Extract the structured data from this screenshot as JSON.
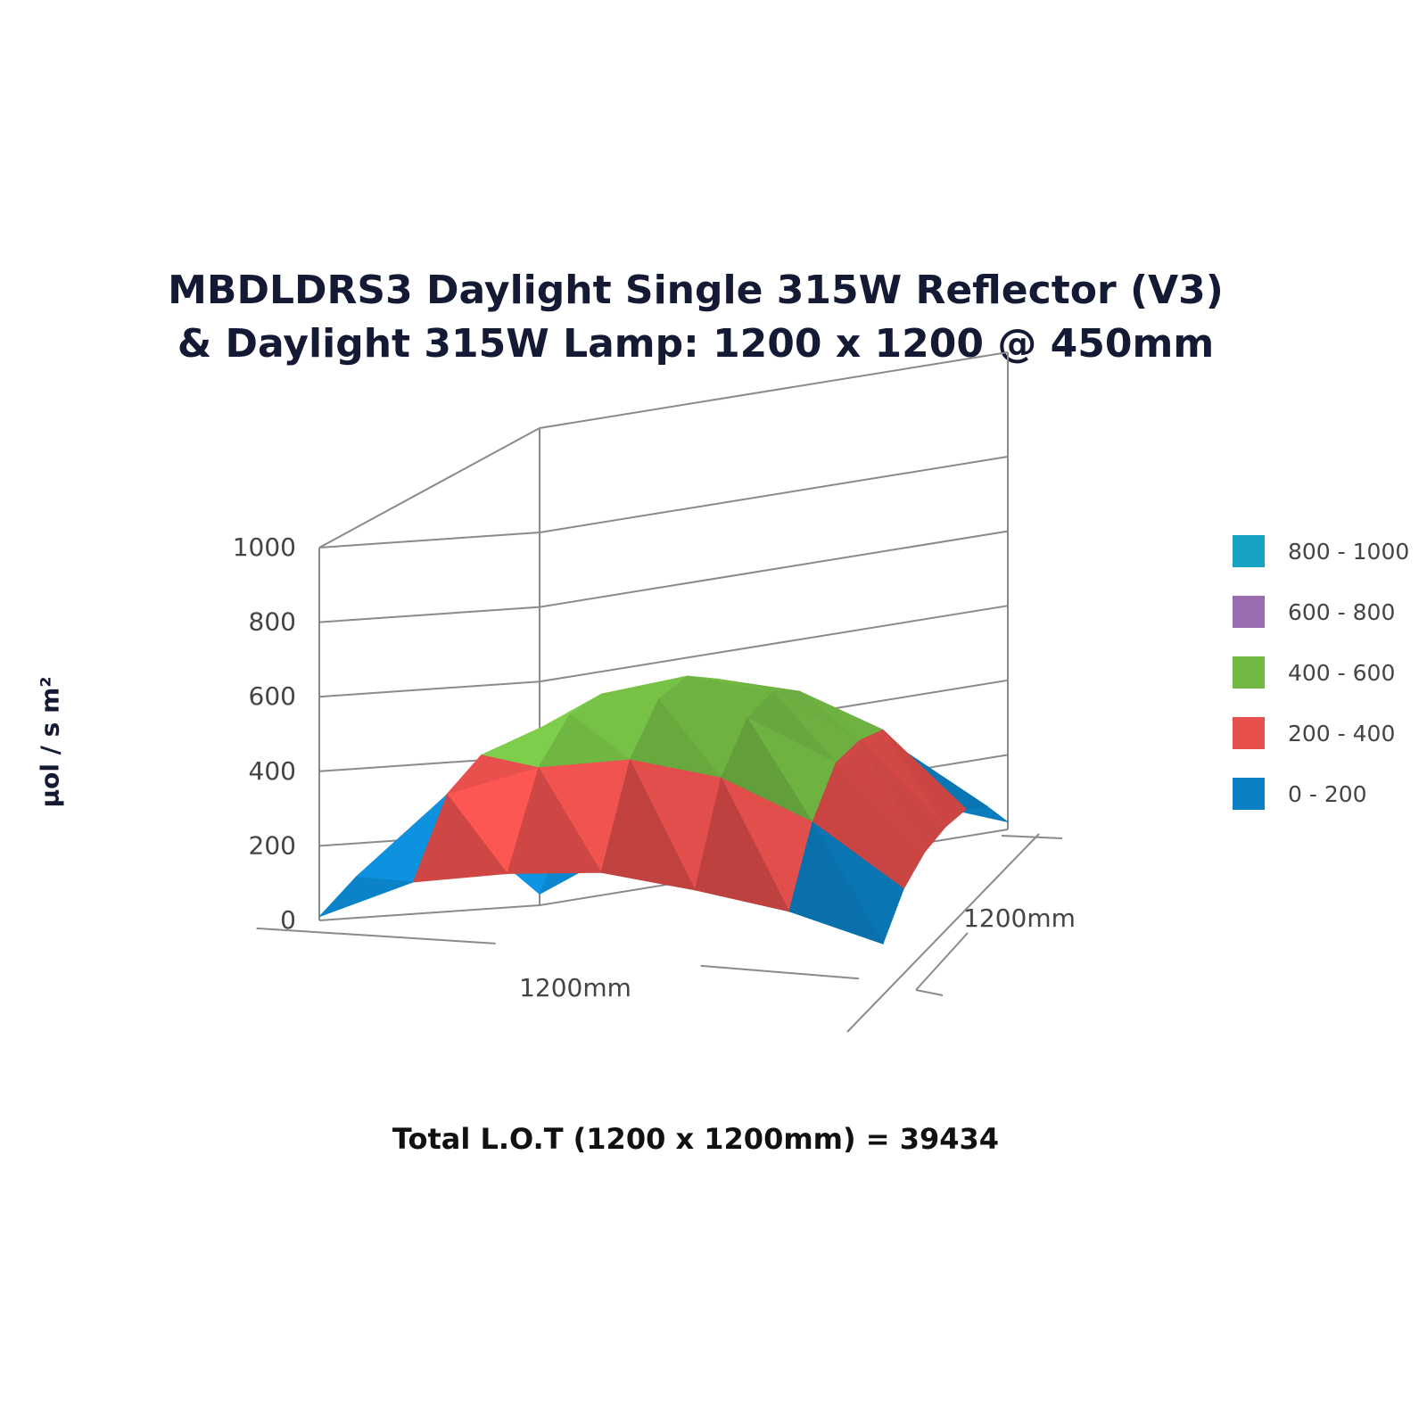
{
  "chart_data": {
    "type": "surface",
    "title": [
      "MBDLDRS3 Daylight Single 315W Reflector (V3)",
      "& Daylight 315W Lamp: 1200 x 1200 @ 450mm"
    ],
    "zlabel": "µol / s m²",
    "z_ticks": [
      "0",
      "200",
      "400",
      "600",
      "800",
      "1000"
    ],
    "zlim": [
      0,
      1000
    ],
    "x_axis_label": "1200mm",
    "y_axis_label": "1200mm",
    "legend_placement": "right",
    "legend": [
      {
        "label": "800 - 1000",
        "color": "#17a4c4",
        "min": 800,
        "max": 1000
      },
      {
        "label": "600 - 800",
        "color": "#9b6bb0",
        "min": 600,
        "max": 800
      },
      {
        "label": "400 - 600",
        "color": "#72b944",
        "min": 400,
        "max": 600
      },
      {
        "label": "200 - 400",
        "color": "#e8504d",
        "min": 200,
        "max": 400
      },
      {
        "label": "0 - 200",
        "color": "#0b80c4",
        "min": 0,
        "max": 200
      }
    ],
    "grid": {
      "x": [
        0,
        200,
        400,
        600,
        800,
        1000,
        1200
      ],
      "y": [
        0,
        200,
        400,
        600,
        800,
        1000,
        1200
      ],
      "z": [
        [
          10,
          120,
          160,
          180,
          150,
          110,
          40
        ],
        [
          110,
          340,
          420,
          450,
          410,
          300,
          130
        ],
        [
          160,
          430,
          540,
          580,
          530,
          410,
          170
        ],
        [
          180,
          450,
          570,
          610,
          560,
          420,
          180
        ],
        [
          160,
          420,
          530,
          570,
          520,
          400,
          170
        ],
        [
          120,
          320,
          400,
          420,
          390,
          290,
          120
        ],
        [
          30,
          110,
          150,
          160,
          140,
          100,
          20
        ]
      ]
    },
    "footer": "Total L.O.T (1200 x 1200mm) = 39434"
  }
}
